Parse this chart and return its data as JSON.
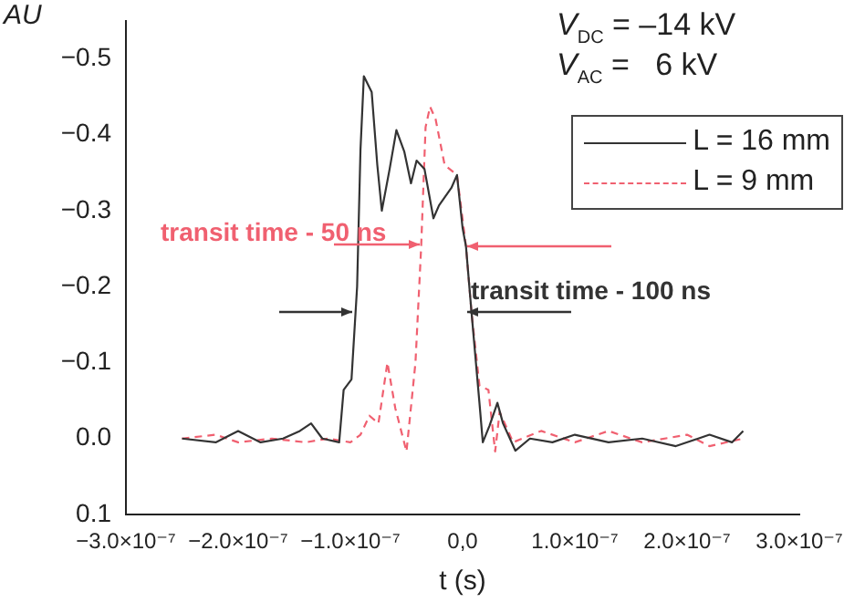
{
  "chart_data": {
    "type": "line",
    "xlabel": "t (s)",
    "ylabel": "AU",
    "annotations": [
      "V$_{DC}$ = –14 kV",
      "V$_{AC}$ =   6 kV",
      "transit time - 50 ns",
      "transit time - 100 ns"
    ],
    "xlim": [
      -3e-07,
      3e-07
    ],
    "xticks": [
      {
        "value": -3e-07,
        "label": "−3.0×10⁻⁷"
      },
      {
        "value": -2e-07,
        "label": "−2.0×10⁻⁷"
      },
      {
        "value": -1e-07,
        "label": "−1.0×10⁻⁷"
      },
      {
        "value": 0,
        "label": "0,0"
      },
      {
        "value": 1e-07,
        "label": "1.0×10⁻⁷"
      },
      {
        "value": 2e-07,
        "label": "2.0×10⁻⁷"
      },
      {
        "value": 3e-07,
        "label": "3.0×10⁻⁷"
      }
    ],
    "ylim": [
      0.1,
      -0.55
    ],
    "yticks": [
      {
        "value": -0.5,
        "label": "−0.5"
      },
      {
        "value": -0.4,
        "label": "−0.4"
      },
      {
        "value": -0.3,
        "label": "−0.3"
      },
      {
        "value": -0.2,
        "label": "−0.2"
      },
      {
        "value": -0.1,
        "label": "−0.1"
      },
      {
        "value": 0,
        "label": "0.0"
      },
      {
        "value": 0.1,
        "label": "0.1"
      }
    ],
    "legend": "top right",
    "grid": false,
    "series": [
      {
        "name": "L = 16 mm",
        "color": "#333333",
        "line_style": "solid",
        "x": [
          -2.5e-07,
          -2.2e-07,
          -2e-07,
          -1.8e-07,
          -1.6e-07,
          -1.45e-07,
          -1.35e-07,
          -1.25e-07,
          -1.1e-07,
          -1.06e-07,
          -9.9e-08,
          -9.4e-08,
          -9.1e-08,
          -8.8e-08,
          -8.1e-08,
          -7.6e-08,
          -7.2e-08,
          -6.5e-08,
          -5.9e-08,
          -5.2e-08,
          -4.6e-08,
          -4.1e-08,
          -3.4e-08,
          -2.6e-08,
          -2.1e-08,
          -1e-08,
          -5e-09,
          0,
          3e-09,
          8e-09,
          1.5e-08,
          1.8e-08,
          2.4e-08,
          3.1e-08,
          3.6e-08,
          4.7e-08,
          6e-08,
          8e-08,
          1e-07,
          1.3e-07,
          1.6e-07,
          1.9e-07,
          2.2e-07,
          2.4e-07,
          2.5e-07
        ],
        "values": [
          0,
          0.005,
          -0.01,
          0.005,
          0,
          -0.01,
          -0.02,
          0,
          0.005,
          -0.064,
          -0.078,
          -0.2,
          -0.38,
          -0.477,
          -0.456,
          -0.36,
          -0.3,
          -0.355,
          -0.406,
          -0.378,
          -0.336,
          -0.366,
          -0.355,
          -0.29,
          -0.307,
          -0.33,
          -0.347,
          -0.277,
          -0.253,
          -0.165,
          -0.047,
          0.005,
          -0.017,
          -0.047,
          -0.02,
          0.016,
          0,
          0.005,
          -0.005,
          0.005,
          0,
          0.01,
          -0.005,
          0.005,
          -0.01
        ]
      },
      {
        "name": "L = 9 mm",
        "color": "#f06070",
        "line_style": "dashed",
        "x": [
          -2.5e-07,
          -2.2e-07,
          -2e-07,
          -1.7e-07,
          -1.4e-07,
          -1.2e-07,
          -1e-07,
          -9.1e-08,
          -8.3e-08,
          -7.5e-08,
          -6.7e-08,
          -6e-08,
          -5e-08,
          -4.2e-08,
          -3.7e-08,
          -3.3e-08,
          -2.9e-08,
          -2.4e-08,
          -1.6e-08,
          -5e-09,
          3e-09,
          8e-09,
          1.5e-08,
          2.3e-08,
          2.9e-08,
          3.3e-08,
          4.5e-08,
          7e-08,
          1e-07,
          1.3e-07,
          1.6e-07,
          2e-07,
          2.2e-07,
          2.5e-07
        ],
        "values": [
          0,
          -0.005,
          0.005,
          0,
          0.005,
          0,
          0.005,
          -0.005,
          -0.03,
          -0.02,
          -0.1,
          -0.04,
          0.017,
          -0.1,
          -0.25,
          -0.41,
          -0.437,
          -0.42,
          -0.36,
          -0.347,
          -0.253,
          -0.165,
          -0.07,
          -0.064,
          0.017,
          -0.035,
          0.005,
          -0.01,
          0.005,
          -0.01,
          0.005,
          -0.005,
          0.01,
          0
        ]
      }
    ]
  }
}
